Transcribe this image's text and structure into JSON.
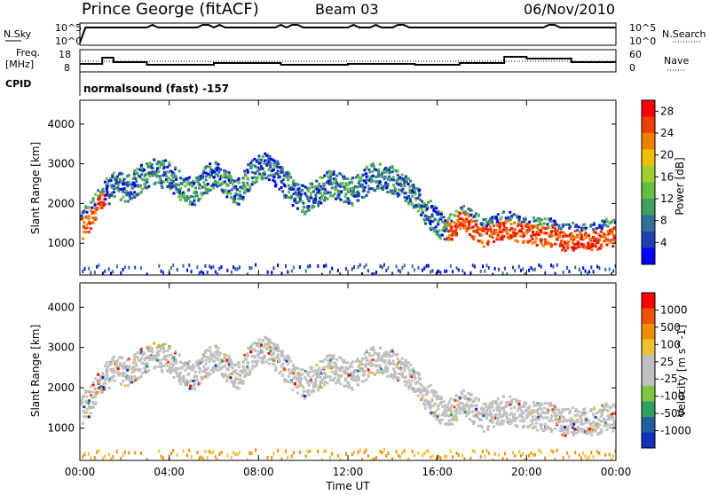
{
  "header": {
    "station": "Prince George (fitACF)",
    "beam": "Beam 03",
    "date": "06/Nov/2010"
  },
  "nsky_panel": {
    "label": "N.Sky",
    "yticks": [
      "10^5",
      "10^0"
    ],
    "right_label": "N.Search",
    "right_yticks": [
      "10^5",
      "10^0"
    ]
  },
  "freq_panel": {
    "label_line1": "Freq.",
    "label_line2": "[MHz]",
    "yticks": [
      "18",
      "8"
    ],
    "right_label": "Nave",
    "right_yticks": [
      "60",
      "0"
    ]
  },
  "cpid_panel": {
    "label": "CPID",
    "text": "normalsound (fast) -157"
  },
  "colors": {
    "power_scale": [
      "#0000ff",
      "#2040b0",
      "#30709a",
      "#40a060",
      "#60c040",
      "#a0d030",
      "#f0c000",
      "#f08000",
      "#f04000",
      "#ff0000"
    ],
    "velocity_scale": [
      "#1030c0",
      "#2060a0",
      "#30a060",
      "#80c840",
      "#c0c0c0",
      "#c0c0c0",
      "#f0c030",
      "#f09000",
      "#f05000",
      "#ff0000"
    ],
    "ground_scatter": "#c0c0c0"
  },
  "chart_data": [
    {
      "type": "heatmap",
      "panel": "power",
      "ylabel": "Slant Range [km]",
      "yticks": [
        "1000",
        "2000",
        "3000",
        "4000"
      ],
      "ylim": [
        200,
        4600
      ],
      "xlim": [
        0,
        24
      ],
      "colorbar_label": "Power [dB]",
      "colorbar_ticks": [
        "4",
        "8",
        "12",
        "16",
        "20",
        "24",
        "28"
      ],
      "colorbar_range": [
        0,
        30
      ],
      "echo_band_center_km": [
        [
          0.0,
          1500
        ],
        [
          0.5,
          1800
        ],
        [
          1.0,
          2300
        ],
        [
          1.5,
          2500
        ],
        [
          2.0,
          2400
        ],
        [
          2.5,
          2600
        ],
        [
          3.0,
          2800
        ],
        [
          3.5,
          2800
        ],
        [
          4.0,
          2700
        ],
        [
          4.5,
          2400
        ],
        [
          5.0,
          2300
        ],
        [
          5.5,
          2600
        ],
        [
          6.0,
          2800
        ],
        [
          6.5,
          2500
        ],
        [
          7.0,
          2300
        ],
        [
          7.5,
          2700
        ],
        [
          8.0,
          3000
        ],
        [
          8.5,
          2900
        ],
        [
          9.0,
          2600
        ],
        [
          9.5,
          2300
        ],
        [
          10.0,
          2100
        ],
        [
          10.5,
          2300
        ],
        [
          11.0,
          2500
        ],
        [
          11.5,
          2500
        ],
        [
          12.0,
          2300
        ],
        [
          12.5,
          2500
        ],
        [
          13.0,
          2700
        ],
        [
          13.5,
          2700
        ],
        [
          14.0,
          2600
        ],
        [
          14.5,
          2400
        ],
        [
          15.0,
          2100
        ],
        [
          15.5,
          1800
        ],
        [
          16.0,
          1500
        ],
        [
          16.5,
          1400
        ],
        [
          17.0,
          1700
        ],
        [
          17.5,
          1500
        ],
        [
          18.0,
          1300
        ],
        [
          18.5,
          1400
        ],
        [
          19.0,
          1500
        ],
        [
          19.5,
          1400
        ],
        [
          20.0,
          1400
        ],
        [
          20.5,
          1300
        ],
        [
          21.0,
          1300
        ],
        [
          21.5,
          1200
        ],
        [
          22.0,
          1200
        ],
        [
          22.5,
          1200
        ],
        [
          23.0,
          1200
        ],
        [
          23.5,
          1300
        ],
        [
          24.0,
          1300
        ]
      ],
      "strong_power_hours": [
        [
          0,
          1
        ],
        [
          16.3,
          24
        ]
      ]
    },
    {
      "type": "heatmap",
      "panel": "velocity",
      "ylabel": "Slant Range [km]",
      "yticks": [
        "1000",
        "2000",
        "3000",
        "4000"
      ],
      "ylim": [
        200,
        4600
      ],
      "xlim": [
        0,
        24
      ],
      "xticks": [
        "00:00",
        "04:00",
        "08:00",
        "12:00",
        "16:00",
        "20:00",
        "00:00"
      ],
      "xlabel": "Time UT",
      "colorbar_label": "Velocity [m s^-1]",
      "colorbar_ticks": [
        "1000",
        "500",
        "100",
        "25",
        "-25",
        "-100",
        "-500",
        "-1000"
      ]
    }
  ]
}
